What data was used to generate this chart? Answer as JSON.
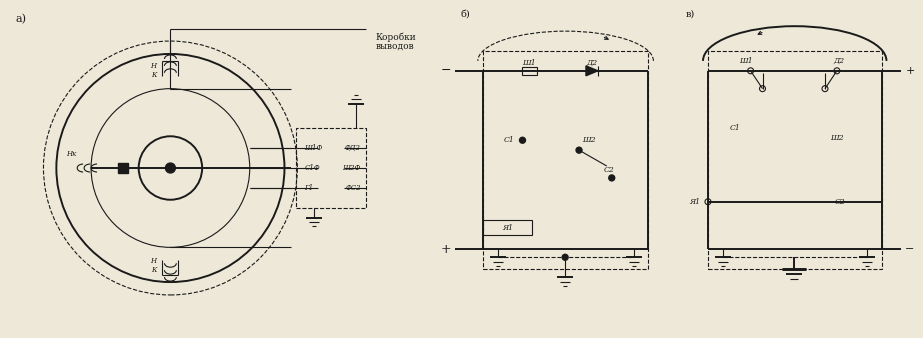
{
  "bg_color": "#ede8d8",
  "line_color": "#1a1a1a",
  "figsize": [
    9.23,
    3.38
  ],
  "dpi": 100,
  "title_a": "а)",
  "title_b": "б)",
  "title_v": "в)",
  "korobka": "Коробки\nвыводов"
}
